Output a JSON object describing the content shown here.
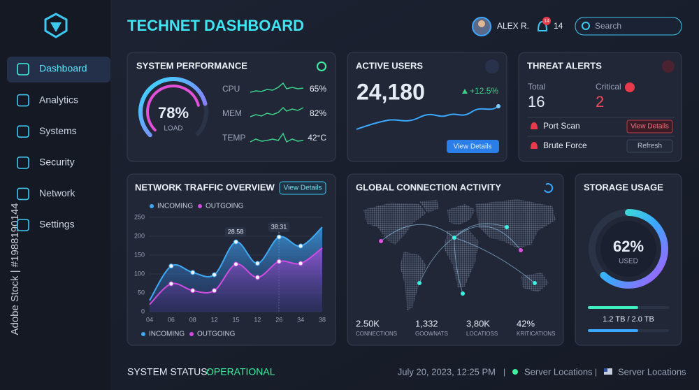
{
  "header": {
    "title": "TECHNET DASHBOARD",
    "user": "ALEX R.",
    "badge": "14",
    "notifications": "14",
    "search": "Search"
  },
  "sidebar": {
    "items": [
      "Dashboard",
      "Analytics",
      "Systems",
      "Security",
      "Network",
      "Settings"
    ]
  },
  "watermark": "Adobe Stock | #1988190144",
  "system_performance": {
    "title": "SYSTEM PERFORMANCE",
    "gauge": "78%",
    "gauge_label": "LOAD",
    "metrics": [
      {
        "name": "CPU",
        "value": "65%"
      },
      {
        "name": "MEM",
        "value": "82%"
      },
      {
        "name": "TEMP",
        "value": "42°C"
      }
    ]
  },
  "active_users": {
    "title": "ACTIVE USERS",
    "value": "24,180",
    "change": "+12.5%",
    "button": "View Details"
  },
  "threat_alerts": {
    "title": "THREAT ALERTS",
    "total_label": "Total",
    "total": "16",
    "critical_label": "Critical",
    "critical": "2",
    "alerts": [
      {
        "name": "Port Scan",
        "action": "View Details"
      },
      {
        "name": "Brute Force",
        "action": "Refresh"
      }
    ]
  },
  "chart_data": {
    "type": "line",
    "title": "NETWORK TRAFFIC OVERVIEW",
    "button": "View Details",
    "categories": [
      "04",
      "06",
      "08",
      "12",
      "15",
      "12",
      "26",
      "34",
      "38"
    ],
    "series": [
      {
        "name": "INCOMING",
        "color": "#3fa9f5",
        "values": [
          30,
          121,
          104,
          98,
          185,
          128,
          198,
          174,
          224
        ]
      },
      {
        "name": "OUTGOING",
        "color": "#d04ce0",
        "values": [
          19,
          74,
          56,
          56,
          126,
          91,
          133,
          128,
          169
        ]
      }
    ],
    "ylim": [
      0,
      250
    ],
    "yticks": [
      0,
      50,
      100,
      150,
      200,
      250
    ],
    "grid": true,
    "annotations": [
      "28.58",
      "38.31"
    ]
  },
  "global_activity": {
    "title": "GLOBAL CONNECTION ACTIVITY",
    "stats": [
      {
        "value": "2.50K",
        "label": "CONNECTIONS"
      },
      {
        "value": "1,332",
        "label": "GOOWNATS"
      },
      {
        "value": "3,80K",
        "label": "LOCATIOSS"
      },
      {
        "value": "42%",
        "label": "KRITICATIONS"
      }
    ]
  },
  "storage": {
    "title": "STORAGE USAGE",
    "percent": "62%",
    "label": "USED",
    "capacity": "1.2 TB / 2.0 TB"
  },
  "footer": {
    "status_label": "SYSTEM STATUS:",
    "status": "OPERATIONAL",
    "datetime": "July 20, 2023, 12:25 PM",
    "separator": "|",
    "location_1": "Server Locations",
    "location_2": "Server Locations"
  }
}
